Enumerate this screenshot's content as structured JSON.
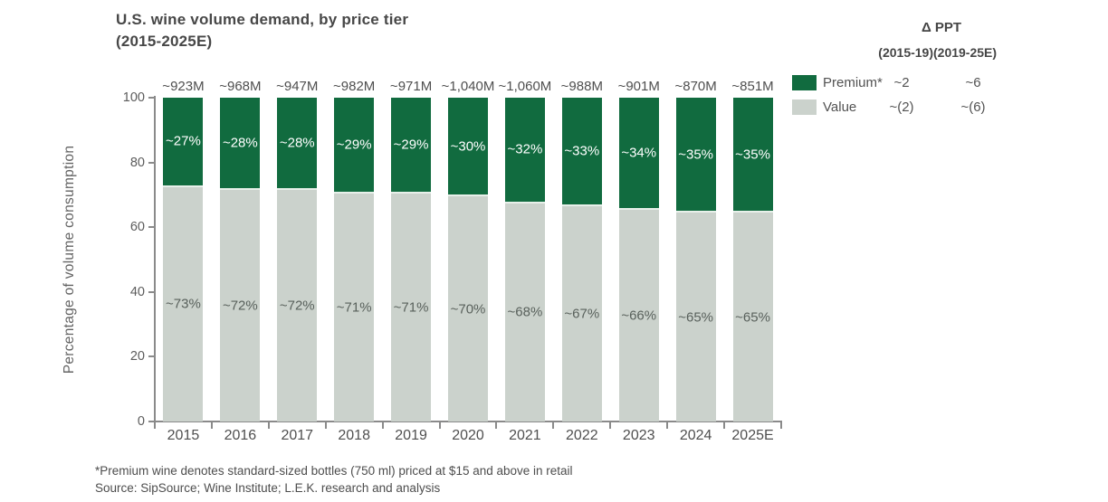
{
  "title": {
    "line1": "U.S. wine volume demand, by price tier",
    "line2": "(2015-2025E)"
  },
  "colors": {
    "premium": "#116b3f",
    "value": "#cbd2cc",
    "separator": "#e8f0ea",
    "premium_label_text": "#ffffff",
    "value_label_text": "#59615c",
    "axis": "#8a8a8a"
  },
  "delta_table": {
    "header": "Δ PPT",
    "col1_header": "(2015-19)",
    "col2_header": "(2019-25E)",
    "rows": [
      {
        "label": "Premium*",
        "swatch": "premium",
        "col1": "~2",
        "col2": "~6"
      },
      {
        "label": "Value",
        "swatch": "value",
        "col1": "~(2)",
        "col2": "~(6)"
      }
    ]
  },
  "chart_data": {
    "type": "bar",
    "stacked": true,
    "title": "U.S. wine volume demand, by price tier (2015-2025E)",
    "categories": [
      "2015",
      "2016",
      "2017",
      "2018",
      "2019",
      "2020",
      "2021",
      "2022",
      "2023",
      "2024",
      "2025E"
    ],
    "series": [
      {
        "name": "Premium*",
        "color": "#116b3f",
        "values": [
          27,
          28,
          28,
          29,
          29,
          30,
          32,
          33,
          34,
          35,
          35
        ],
        "labels": [
          "~27%",
          "~28%",
          "~28%",
          "~29%",
          "~29%",
          "~30%",
          "~32%",
          "~33%",
          "~34%",
          "~35%",
          "~35%"
        ]
      },
      {
        "name": "Value",
        "color": "#cbd2cc",
        "values": [
          73,
          72,
          72,
          71,
          71,
          70,
          68,
          67,
          66,
          65,
          65
        ],
        "labels": [
          "~73%",
          "~72%",
          "~72%",
          "~71%",
          "~71%",
          "~70%",
          "~68%",
          "~67%",
          "~66%",
          "~65%",
          "~65%"
        ]
      }
    ],
    "totals": [
      "~923M",
      "~968M",
      "~947M",
      "~982M",
      "~971M",
      "~1,040M",
      "~1,060M",
      "~988M",
      "~901M",
      "~870M",
      "~851M"
    ],
    "xlabel": "",
    "ylabel": "Percentage of volume consumption",
    "ylim": [
      0,
      100
    ],
    "yticks": [
      0,
      20,
      40,
      60,
      80,
      100
    ],
    "grid": false,
    "legend_position": "top-right"
  },
  "footnotes": {
    "note1": "*Premium wine denotes standard-sized bottles (750 ml) priced at $15 and above in retail",
    "note2": "Source: SipSource; Wine Institute; L.E.K. research and analysis"
  }
}
